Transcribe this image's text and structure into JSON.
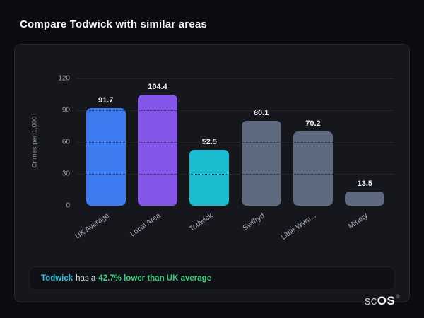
{
  "page": {
    "title": "Compare Todwick with similar areas"
  },
  "chart_data": {
    "type": "bar",
    "categories": [
      "UK Average",
      "Local Area",
      "Todwick",
      "Swffryd",
      "Little Wym...",
      "Minety"
    ],
    "values": [
      91.7,
      104.4,
      52.5,
      80.1,
      70.2,
      13.5
    ],
    "bar_colors": [
      "#3d7cf0",
      "#8457e8",
      "#1bbccf",
      "#5d6a7e",
      "#5d6a7e",
      "#5d6a7e"
    ],
    "title": "",
    "xlabel": "",
    "ylabel": "Crimes per 1,000",
    "yticks": [
      0,
      30,
      60,
      90,
      120
    ],
    "ylim": [
      0,
      120
    ],
    "grid": "dotted-horizontal",
    "legend": "none"
  },
  "note": {
    "area": "Todwick",
    "middle": "has a",
    "highlight": "42.7% lower than UK average"
  },
  "footer": {
    "logo_prefix": "sc",
    "logo_suffix": "OS",
    "registered": "®"
  },
  "colors": {
    "background": "#0b0c10",
    "card": "#15171d",
    "accent_teal": "#23c2d6",
    "accent_green": "#33d17a",
    "grid": "#2c3039"
  }
}
